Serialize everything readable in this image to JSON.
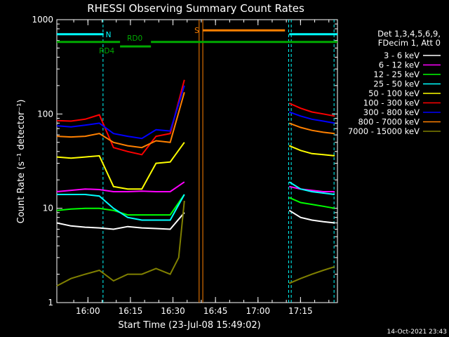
{
  "chart_data": {
    "type": "line",
    "title": "RHESSI Observing Summary Count Rates",
    "xlabel": "Start Time (23-Jul-08 15:49:02)",
    "ylabel": "Count Rate (s⁻¹ detector⁻¹)",
    "yscale": "log",
    "ylim": [
      1,
      1000
    ],
    "x_unit": "minutes after 15:49:02",
    "xlim": [
      0,
      99
    ],
    "x_tick_labels": [
      "16:00",
      "16:15",
      "16:30",
      "16:45",
      "17:00",
      "17:15"
    ],
    "x_tick_minutes": [
      10.97,
      25.97,
      40.97,
      55.97,
      70.97,
      85.97
    ],
    "y_tick_labels": [
      "1",
      "10",
      "100",
      "1000"
    ],
    "y_tick_values": [
      1,
      10,
      100,
      1000
    ],
    "legend": {
      "position": "right",
      "header": [
        "Det 1,3,4,5,6,9,",
        "FDecim 1, Att 0"
      ]
    },
    "series": [
      {
        "name": "3 - 6 keV",
        "color": "#ffffff",
        "segments": [
          {
            "x": [
              0,
              5,
              10,
              15,
              20,
              25,
              30,
              35,
              40,
              45
            ],
            "y": [
              7,
              6.5,
              6.3,
              6.2,
              6,
              6.4,
              6.2,
              6.1,
              6,
              9
            ]
          },
          {
            "x": [
              82,
              86,
              90,
              94,
              98
            ],
            "y": [
              9.5,
              8,
              7.5,
              7.2,
              7
            ]
          }
        ]
      },
      {
        "name": "6 - 12 keV",
        "color": "#ff00ff",
        "segments": [
          {
            "x": [
              0,
              5,
              10,
              15,
              20,
              25,
              30,
              35,
              40,
              45
            ],
            "y": [
              15,
              15.5,
              16,
              15.8,
              15,
              15,
              15.2,
              15,
              15,
              19
            ]
          },
          {
            "x": [
              82,
              86,
              90,
              94,
              98
            ],
            "y": [
              17,
              16,
              15.5,
              15,
              15
            ]
          }
        ]
      },
      {
        "name": "12 - 25 keV",
        "color": "#00ff00",
        "segments": [
          {
            "x": [
              0,
              5,
              10,
              15,
              20,
              25,
              30,
              35,
              40,
              45
            ],
            "y": [
              9.5,
              9.8,
              10,
              10,
              9.5,
              8.5,
              8.5,
              8.5,
              8.5,
              14
            ]
          },
          {
            "x": [
              82,
              86,
              90,
              94,
              98
            ],
            "y": [
              13,
              11.5,
              11,
              10.5,
              10
            ]
          }
        ]
      },
      {
        "name": "25 - 50 keV",
        "color": "#00ffff",
        "segments": [
          {
            "x": [
              0,
              5,
              10,
              15,
              20,
              25,
              30,
              35,
              40,
              45
            ],
            "y": [
              14,
              14,
              14,
              13.5,
              10,
              8,
              7.5,
              7.5,
              7.5,
              14
            ]
          },
          {
            "x": [
              82,
              86,
              90,
              94,
              98
            ],
            "y": [
              19,
              16,
              15,
              14.5,
              14
            ]
          }
        ]
      },
      {
        "name": "50 - 100 keV",
        "color": "#ffff00",
        "segments": [
          {
            "x": [
              0,
              5,
              10,
              15,
              20,
              25,
              30,
              35,
              40,
              45
            ],
            "y": [
              35,
              34,
              35,
              36,
              17,
              16,
              16,
              30,
              31,
              50
            ]
          },
          {
            "x": [
              82,
              86,
              90,
              94,
              98
            ],
            "y": [
              46,
              41,
              38,
              37,
              36
            ]
          }
        ]
      },
      {
        "name": "100 - 300 keV",
        "color": "#ff0000",
        "segments": [
          {
            "x": [
              0,
              5,
              10,
              15,
              20,
              25,
              30,
              35,
              40,
              45
            ],
            "y": [
              85,
              84,
              88,
              98,
              44,
              40,
              37,
              58,
              62,
              230
            ]
          },
          {
            "x": [
              82,
              86,
              90,
              94,
              98
            ],
            "y": [
              130,
              115,
              105,
              100,
              95
            ]
          }
        ]
      },
      {
        "name": "300 - 800 keV",
        "color": "#0000ff",
        "segments": [
          {
            "x": [
              0,
              5,
              10,
              15,
              20,
              25,
              30,
              35,
              40,
              45
            ],
            "y": [
              75,
              73,
              76,
              80,
              62,
              58,
              55,
              68,
              66,
              200
            ]
          },
          {
            "x": [
              82,
              86,
              90,
              94,
              98
            ],
            "y": [
              105,
              95,
              88,
              84,
              80
            ]
          }
        ]
      },
      {
        "name": "800 - 7000 keV",
        "color": "#ff8000",
        "segments": [
          {
            "x": [
              0,
              5,
              10,
              15,
              20,
              25,
              30,
              35,
              40,
              45
            ],
            "y": [
              58,
              57,
              58,
              62,
              50,
              46,
              44,
              52,
              50,
              170
            ]
          },
          {
            "x": [
              82,
              86,
              90,
              94,
              98
            ],
            "y": [
              80,
              72,
              67,
              64,
              62
            ]
          }
        ]
      },
      {
        "name": "7000 - 15000 keV",
        "color": "#808000",
        "segments": [
          {
            "x": [
              0,
              5,
              10,
              15,
              20,
              25,
              30,
              35,
              40,
              43,
              45
            ],
            "y": [
              1.5,
              1.8,
              2,
              2.2,
              1.7,
              2,
              2,
              2.3,
              2,
              3,
              12
            ]
          },
          {
            "x": [
              82,
              86,
              90,
              94,
              98
            ],
            "y": [
              1.6,
              1.8,
              2,
              2.2,
              2.4
            ]
          }
        ]
      }
    ],
    "annotations": {
      "S": {
        "label": "S",
        "color": "#ff8000",
        "start": 51.5,
        "end": 80.5,
        "level": 770
      },
      "N": {
        "label": "N",
        "color": "#00ffff",
        "intervals": [
          {
            "start": 0,
            "end": 16.5
          },
          {
            "start": 82,
            "end": 99
          }
        ],
        "level": 700
      },
      "RD0": {
        "label": "RD0",
        "color": "#00aa00",
        "start": 0,
        "end": 99,
        "level": 580
      },
      "RD4": {
        "label": "RD4",
        "color": "#00aa00",
        "start": 22.3,
        "end": 33.2,
        "level": 520
      },
      "boundaries": [
        {
          "color": "#00ffff",
          "x": 16.3
        },
        {
          "color": "#00ffff",
          "x": 81.8
        },
        {
          "color": "#00ffff",
          "x": 82.7
        },
        {
          "color": "#00ffff",
          "x": 97.8
        },
        {
          "color": "#ff8000",
          "x": 50.2
        },
        {
          "color": "#ff8000",
          "x": 51.5
        }
      ]
    },
    "timestamp": "14-Oct-2021 23:43"
  }
}
